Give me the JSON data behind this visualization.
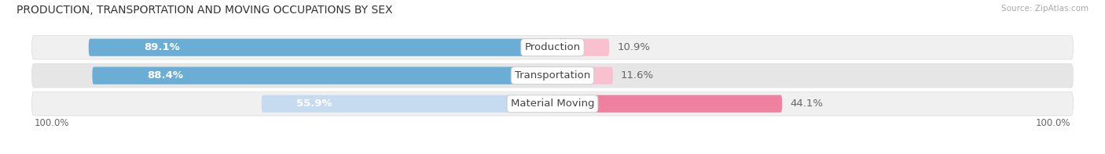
{
  "title": "PRODUCTION, TRANSPORTATION AND MOVING OCCUPATIONS BY SEX",
  "source": "Source: ZipAtlas.com",
  "categories": [
    "Production",
    "Transportation",
    "Material Moving"
  ],
  "male_pct": [
    89.1,
    88.4,
    55.9
  ],
  "female_pct": [
    10.9,
    11.6,
    44.1
  ],
  "male_color_strong": "#6aaed6",
  "male_color_light": "#c6dbef",
  "female_color_strong": "#f080a0",
  "female_color_light": "#f9c0d0",
  "row_bg_odd": "#f0f0f0",
  "row_bg_even": "#e6e6e6",
  "label_color_inside": "white",
  "label_color_outside": "#666666",
  "label_fontsize": 9.5,
  "title_fontsize": 10,
  "source_fontsize": 7.5,
  "legend_fontsize": 9,
  "axis_label_fontsize": 8.5
}
